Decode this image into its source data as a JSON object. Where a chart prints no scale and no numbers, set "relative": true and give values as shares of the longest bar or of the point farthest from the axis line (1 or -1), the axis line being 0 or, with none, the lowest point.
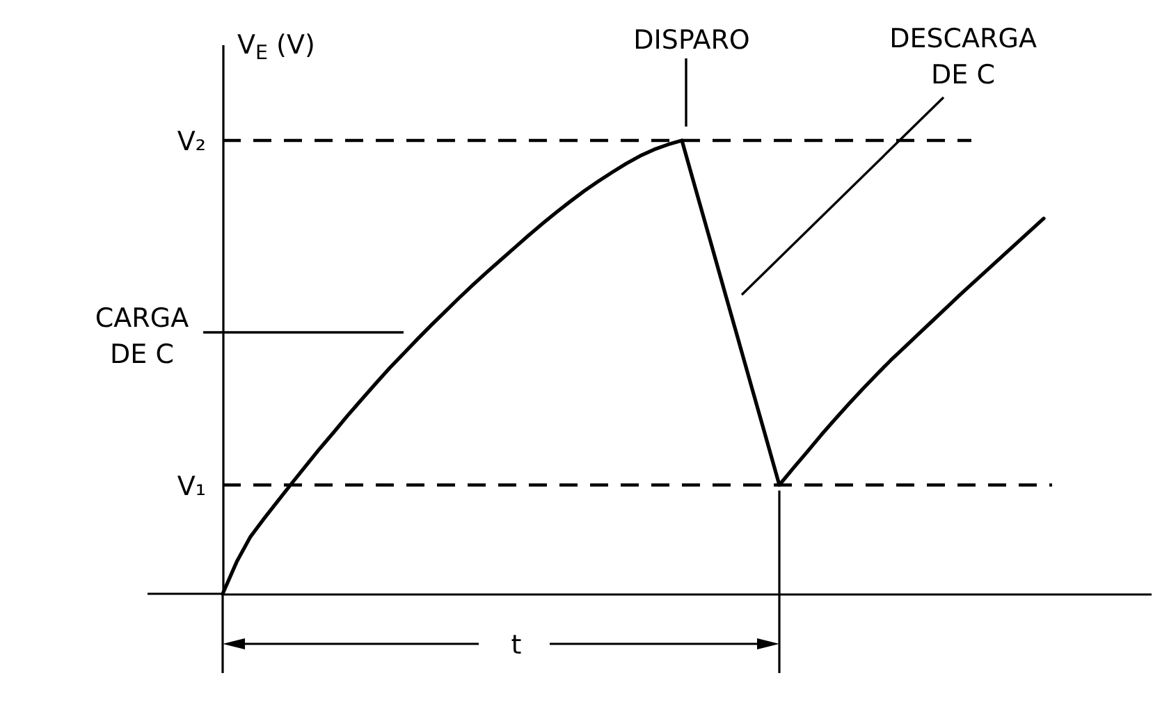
{
  "chart_data": {
    "type": "line",
    "relative": true,
    "ylabel": "V$_{E}$ (V)",
    "tick_labels": false,
    "categories": [
      null,
      null,
      null,
      null,
      null,
      null,
      null,
      null,
      null,
      null,
      null,
      null,
      null,
      null,
      null,
      null,
      null,
      null,
      null,
      null,
      null,
      null,
      null,
      null,
      null,
      null,
      null,
      null,
      null,
      null,
      null,
      null,
      null,
      null,
      null,
      null,
      null,
      null,
      null,
      null,
      null,
      null,
      null,
      null,
      null,
      null,
      null,
      null,
      null,
      null,
      null,
      null,
      null,
      null,
      null,
      null,
      null,
      null,
      null,
      null
    ],
    "series": [
      {
        "color": "#000000",
        "values": [
          0,
          0.07,
          0.126,
          0.167,
          0.206,
          0.245,
          0.283,
          0.321,
          0.357,
          0.394,
          0.429,
          0.464,
          0.498,
          0.53,
          0.562,
          0.593,
          0.623,
          0.653,
          0.682,
          0.71,
          0.737,
          0.764,
          0.791,
          0.817,
          0.842,
          0.866,
          0.889,
          0.91,
          0.93,
          0.949,
          0.966,
          0.98,
          0.991,
          1,
          0.891,
          0.783,
          0.674,
          0.566,
          0.457,
          0.349,
          0.24,
          0.277,
          0.313,
          0.35,
          0.385,
          0.419,
          0.452,
          0.484,
          0.515,
          0.544,
          0.573,
          0.602,
          0.631,
          0.66,
          0.688,
          0.716,
          0.744,
          0.772,
          0.8,
          0.828
        ]
      }
    ],
    "ref_lines": [
      {
        "axis": "y",
        "value": 1,
        "label": "V₂",
        "line_style": "dashed"
      },
      {
        "axis": "y",
        "value": 0.24,
        "label": "V₁",
        "line_style": "dashed"
      }
    ],
    "annotations": [
      "DISPARO",
      "DESCARGA DE C",
      "CARGA DE C",
      "t"
    ]
  }
}
